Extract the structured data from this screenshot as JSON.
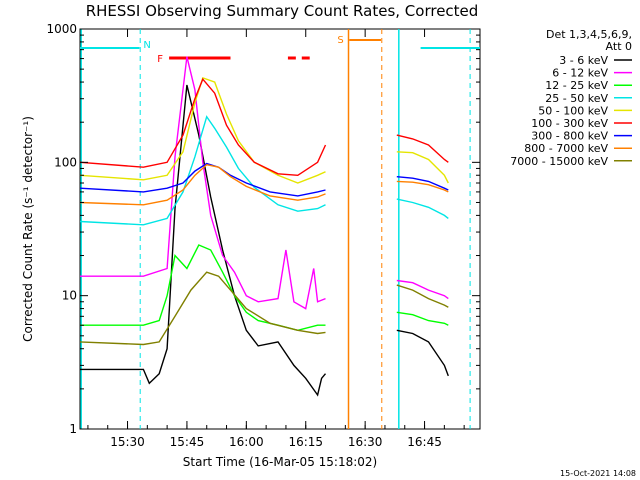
{
  "chart_data": {
    "type": "line",
    "title": "RHESSI Observing Summary Count Rates, Corrected",
    "xlabel": "Start Time (16-Mar-05 15:18:02)",
    "ylabel": "Corrected Count Rate (s⁻¹ detector⁻¹)",
    "y_scale": "log",
    "ylim": [
      1,
      1000
    ],
    "xlim": [
      "15:18",
      "16:59"
    ],
    "x_ticks": [
      "15:30",
      "15:45",
      "16:00",
      "16:15",
      "16:30",
      "16:45"
    ],
    "y_ticks": [
      "1",
      "10",
      "100",
      "1000"
    ],
    "legend_header": [
      "Det 1,3,4,5,6,9,",
      "Att 0"
    ],
    "legend_position": "right",
    "timestamp": "15-Oct-2021 14:08",
    "flags": [
      {
        "label": "N",
        "color": "#00e5e5"
      },
      {
        "label": "F",
        "color": "#ff0000"
      },
      {
        "label": "S",
        "color": "#ff8000"
      }
    ],
    "series": [
      {
        "name": "3 - 6 keV",
        "color": "#000000",
        "values": [
          [
            0,
            2.8
          ],
          [
            16,
            2.8
          ],
          [
            17.5,
            2.2
          ],
          [
            20,
            2.6
          ],
          [
            22,
            4
          ],
          [
            24,
            45
          ],
          [
            27,
            380
          ],
          [
            30,
            160
          ],
          [
            33,
            55
          ],
          [
            36,
            22
          ],
          [
            39,
            10
          ],
          [
            42,
            5.5
          ],
          [
            45,
            4.2
          ],
          [
            50,
            4.5
          ],
          [
            54,
            3
          ],
          [
            57,
            2.4
          ],
          [
            60,
            1.8
          ],
          [
            61,
            2.4
          ],
          [
            62,
            2.6
          ],
          [
            80,
            5.5
          ],
          [
            84,
            5.2
          ],
          [
            88,
            4.5
          ],
          [
            92,
            3
          ],
          [
            93,
            2.5
          ]
        ]
      },
      {
        "name": "6 - 12 keV",
        "color": "#ff00ff",
        "values": [
          [
            0,
            14
          ],
          [
            16,
            14
          ],
          [
            22,
            16
          ],
          [
            24,
            110
          ],
          [
            27,
            620
          ],
          [
            29,
            350
          ],
          [
            31,
            100
          ],
          [
            33,
            40
          ],
          [
            36,
            20
          ],
          [
            39,
            15
          ],
          [
            42,
            10
          ],
          [
            45,
            9
          ],
          [
            50,
            9.5
          ],
          [
            52,
            22
          ],
          [
            54,
            9
          ],
          [
            57,
            8
          ],
          [
            59,
            16
          ],
          [
            60,
            9
          ],
          [
            62,
            9.5
          ],
          [
            80,
            13
          ],
          [
            84,
            12.5
          ],
          [
            88,
            11
          ],
          [
            92,
            10
          ],
          [
            93,
            9.5
          ]
        ]
      },
      {
        "name": "12 - 25 keV",
        "color": "#00ff00",
        "values": [
          [
            0,
            6
          ],
          [
            16,
            6
          ],
          [
            20,
            6.5
          ],
          [
            22,
            10
          ],
          [
            24,
            20
          ],
          [
            27,
            16
          ],
          [
            30,
            24
          ],
          [
            33,
            22
          ],
          [
            36,
            15
          ],
          [
            39,
            10
          ],
          [
            42,
            7.5
          ],
          [
            45,
            6.5
          ],
          [
            50,
            6
          ],
          [
            55,
            5.5
          ],
          [
            60,
            6
          ],
          [
            62,
            6
          ],
          [
            80,
            7.5
          ],
          [
            84,
            7.2
          ],
          [
            88,
            6.5
          ],
          [
            92,
            6.2
          ],
          [
            93,
            6
          ]
        ]
      },
      {
        "name": "25 - 50 keV",
        "color": "#00e5e5",
        "values": [
          [
            0,
            36
          ],
          [
            16,
            34
          ],
          [
            22,
            38
          ],
          [
            26,
            60
          ],
          [
            29,
            110
          ],
          [
            32,
            220
          ],
          [
            34,
            180
          ],
          [
            37,
            130
          ],
          [
            40,
            90
          ],
          [
            44,
            65
          ],
          [
            50,
            48
          ],
          [
            55,
            43
          ],
          [
            60,
            45
          ],
          [
            62,
            48
          ],
          [
            80,
            53
          ],
          [
            84,
            50
          ],
          [
            88,
            46
          ],
          [
            92,
            40
          ],
          [
            93,
            38
          ]
        ]
      },
      {
        "name": "50 - 100 keV",
        "color": "#e5e500",
        "values": [
          [
            0,
            80
          ],
          [
            16,
            74
          ],
          [
            22,
            80
          ],
          [
            26,
            120
          ],
          [
            29,
            280
          ],
          [
            31,
            430
          ],
          [
            34,
            400
          ],
          [
            37,
            230
          ],
          [
            40,
            145
          ],
          [
            44,
            100
          ],
          [
            50,
            80
          ],
          [
            55,
            70
          ],
          [
            60,
            80
          ],
          [
            62,
            85
          ],
          [
            80,
            120
          ],
          [
            84,
            118
          ],
          [
            88,
            105
          ],
          [
            92,
            80
          ],
          [
            93,
            70
          ]
        ]
      },
      {
        "name": "100 - 300 keV",
        "color": "#ff0000",
        "values": [
          [
            0,
            100
          ],
          [
            16,
            92
          ],
          [
            22,
            100
          ],
          [
            26,
            160
          ],
          [
            29,
            300
          ],
          [
            31,
            420
          ],
          [
            34,
            330
          ],
          [
            37,
            190
          ],
          [
            40,
            135
          ],
          [
            44,
            100
          ],
          [
            50,
            82
          ],
          [
            55,
            80
          ],
          [
            60,
            100
          ],
          [
            62,
            135
          ],
          [
            80,
            160
          ],
          [
            84,
            150
          ],
          [
            88,
            135
          ],
          [
            92,
            105
          ],
          [
            93,
            100
          ]
        ]
      },
      {
        "name": "300 - 800 keV",
        "color": "#0000ff",
        "values": [
          [
            0,
            64
          ],
          [
            16,
            60
          ],
          [
            22,
            64
          ],
          [
            26,
            70
          ],
          [
            29,
            86
          ],
          [
            32,
            98
          ],
          [
            35,
            92
          ],
          [
            38,
            80
          ],
          [
            42,
            70
          ],
          [
            48,
            60
          ],
          [
            55,
            56
          ],
          [
            60,
            60
          ],
          [
            62,
            62
          ],
          [
            80,
            78
          ],
          [
            84,
            76
          ],
          [
            88,
            72
          ],
          [
            92,
            64
          ],
          [
            93,
            62
          ]
        ]
      },
      {
        "name": "800 - 7000 keV",
        "color": "#ff8000",
        "values": [
          [
            0,
            50
          ],
          [
            16,
            48
          ],
          [
            22,
            52
          ],
          [
            26,
            62
          ],
          [
            29,
            80
          ],
          [
            32,
            96
          ],
          [
            35,
            92
          ],
          [
            38,
            78
          ],
          [
            42,
            66
          ],
          [
            48,
            56
          ],
          [
            55,
            52
          ],
          [
            60,
            55
          ],
          [
            62,
            58
          ],
          [
            80,
            72
          ],
          [
            84,
            71
          ],
          [
            88,
            68
          ],
          [
            92,
            62
          ],
          [
            93,
            60
          ]
        ]
      },
      {
        "name": "7000 - 15000 keV",
        "color": "#808000",
        "values": [
          [
            0,
            4.5
          ],
          [
            16,
            4.3
          ],
          [
            20,
            4.5
          ],
          [
            24,
            7
          ],
          [
            28,
            11
          ],
          [
            32,
            15
          ],
          [
            35,
            14
          ],
          [
            38,
            11
          ],
          [
            42,
            8
          ],
          [
            48,
            6.2
          ],
          [
            55,
            5.5
          ],
          [
            60,
            5.2
          ],
          [
            62,
            5.3
          ],
          [
            80,
            12
          ],
          [
            84,
            11
          ],
          [
            88,
            9.5
          ],
          [
            92,
            8.5
          ],
          [
            93,
            8.2
          ]
        ]
      }
    ]
  }
}
